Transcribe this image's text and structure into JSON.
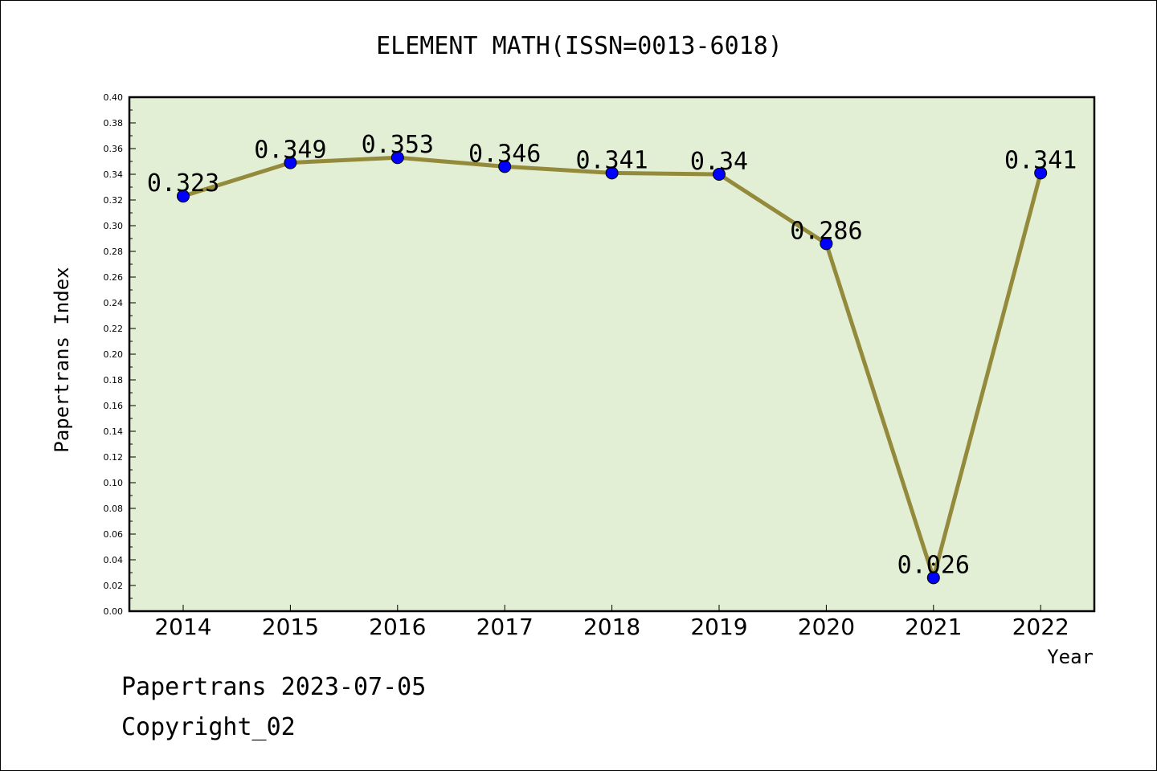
{
  "chart_data": {
    "type": "line",
    "title": "ELEMENT MATH(ISSN=0013-6018)",
    "xlabel": "Year",
    "ylabel": "Papertrans Index",
    "categories": [
      "2014",
      "2015",
      "2016",
      "2017",
      "2018",
      "2019",
      "2020",
      "2021",
      "2022"
    ],
    "values": [
      0.323,
      0.349,
      0.353,
      0.346,
      0.341,
      0.34,
      0.286,
      0.026,
      0.341
    ],
    "data_labels": [
      "0.323",
      "0.349",
      "0.353",
      "0.346",
      "0.341",
      "0.34",
      "0.286",
      "0.026",
      "0.341"
    ],
    "ylim": [
      0,
      0.4
    ],
    "yticks": [
      "0.00",
      "0.02",
      "0.04",
      "0.06",
      "0.08",
      "0.10",
      "0.12",
      "0.14",
      "0.16",
      "0.18",
      "0.20",
      "0.22",
      "0.24",
      "0.26",
      "0.28",
      "0.30",
      "0.32",
      "0.34",
      "0.36",
      "0.38",
      "0.40"
    ],
    "grid": false,
    "colors": {
      "plot_background": "#e2efd5",
      "line": "#948a3c",
      "marker": "#0000ff"
    }
  },
  "footer": {
    "line1": "Papertrans 2023-07-05",
    "line2": "Copyright_02"
  }
}
